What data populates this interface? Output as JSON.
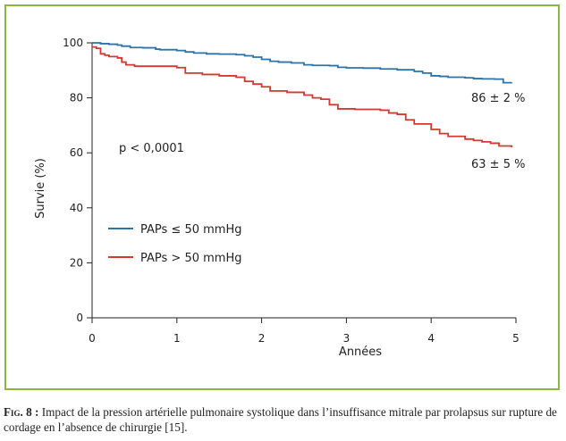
{
  "chart_data": {
    "type": "line",
    "xlabel": "Années",
    "ylabel": "Survie (%)",
    "xlim": [
      0,
      5
    ],
    "ylim": [
      0,
      100
    ],
    "x_ticks": [
      0,
      1,
      2,
      3,
      4,
      5
    ],
    "y_ticks": [
      0,
      20,
      40,
      60,
      80,
      100
    ],
    "legend_position": "left-center",
    "grid": false,
    "series": [
      {
        "name": "PAPs ≤ 50 mmHg",
        "color": "#2e73a8",
        "x": [
          0,
          0.1,
          0.2,
          0.3,
          0.35,
          0.45,
          0.6,
          0.75,
          0.8,
          1.0,
          1.1,
          1.2,
          1.35,
          1.5,
          1.7,
          1.8,
          1.9,
          2.0,
          2.1,
          2.2,
          2.35,
          2.5,
          2.6,
          2.8,
          2.9,
          3.0,
          3.2,
          3.4,
          3.6,
          3.8,
          3.9,
          4.0,
          4.1,
          4.2,
          4.4,
          4.5,
          4.6,
          4.75,
          4.85,
          4.95
        ],
        "values": [
          100,
          99.7,
          99.5,
          99.2,
          98.8,
          98.3,
          98.2,
          97.7,
          97.5,
          97.2,
          96.7,
          96.3,
          96.0,
          95.9,
          95.7,
          95.3,
          94.8,
          94.0,
          93.3,
          93.0,
          92.7,
          92.0,
          91.8,
          91.7,
          91.1,
          90.9,
          90.8,
          90.5,
          90.2,
          89.6,
          89.0,
          88.0,
          87.8,
          87.5,
          87.3,
          87.0,
          86.9,
          86.8,
          85.5,
          85.6
        ]
      },
      {
        "name": "PAPs > 50 mmHg",
        "color": "#d13a32",
        "x": [
          0,
          0.05,
          0.1,
          0.15,
          0.2,
          0.3,
          0.35,
          0.4,
          0.5,
          0.7,
          0.9,
          1.0,
          1.1,
          1.3,
          1.5,
          1.7,
          1.8,
          1.9,
          2.0,
          2.1,
          2.3,
          2.5,
          2.6,
          2.7,
          2.8,
          2.9,
          3.0,
          3.1,
          3.3,
          3.4,
          3.5,
          3.6,
          3.7,
          3.8,
          4.0,
          4.1,
          4.2,
          4.4,
          4.5,
          4.6,
          4.7,
          4.8,
          4.95
        ],
        "values": [
          98.5,
          98.0,
          96.0,
          95.5,
          95.0,
          94.5,
          93.0,
          92.0,
          91.5,
          91.5,
          91.5,
          91.0,
          89.0,
          88.5,
          88.0,
          87.5,
          86.0,
          85.0,
          84.0,
          82.5,
          82.0,
          81.0,
          80.0,
          79.5,
          77.5,
          76.0,
          76.0,
          75.8,
          75.8,
          75.5,
          74.5,
          74.0,
          72.0,
          70.5,
          68.5,
          67.0,
          66.0,
          65.0,
          64.5,
          64.0,
          63.5,
          62.5,
          62.0
        ]
      }
    ],
    "annotations": {
      "p_value": "p < 0,0001",
      "survival_low_pap": "86 ± 2 %",
      "survival_high_pap": "63 ± 5 %"
    }
  },
  "legend": {
    "items": [
      {
        "label": "PAPs ≤ 50 mmHg",
        "color": "#2e73a8"
      },
      {
        "label": "PAPs > 50 mmHg",
        "color": "#d13a32"
      }
    ]
  },
  "frame_color": "#8db544",
  "caption": {
    "label": "Fig. 8 :",
    "text": " Impact de la pression artérielle pulmonaire systolique dans l’insuffisance mitrale par prolapsus sur rupture de cordage en l’absence de chirurgie [15]."
  }
}
